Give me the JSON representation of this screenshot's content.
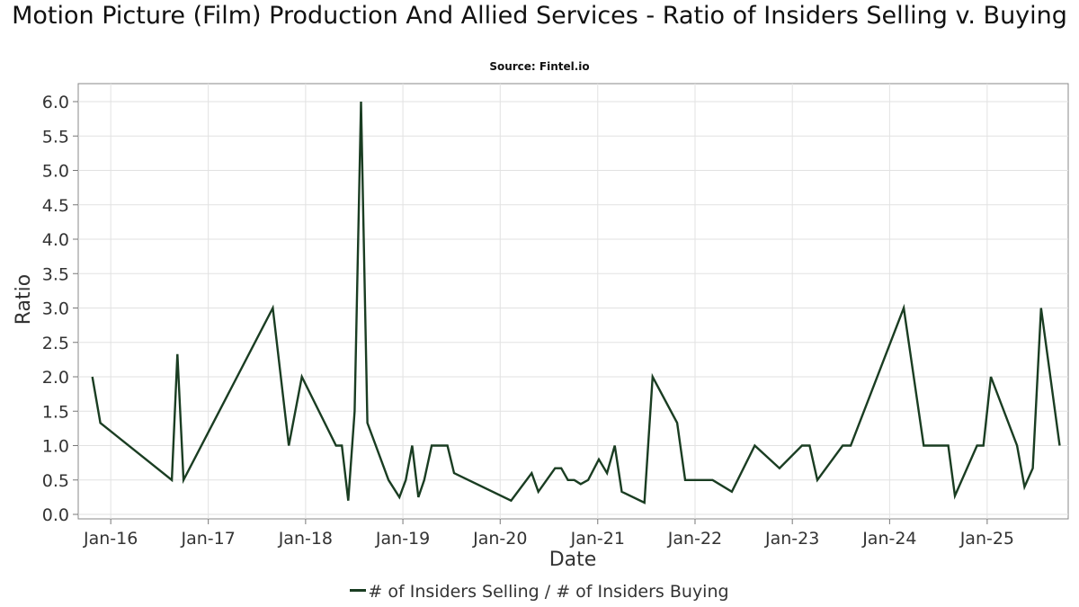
{
  "chart_data": {
    "type": "line",
    "title": "Motion Picture (Film) Production And Allied Services - Ratio of Insiders Selling v. Buying",
    "subtitle": "Source: Fintel.io",
    "xlabel": "Date",
    "ylabel": "Ratio",
    "x_ticks": [
      "Jan-16",
      "Jan-17",
      "Jan-18",
      "Jan-19",
      "Jan-20",
      "Jan-21",
      "Jan-22",
      "Jan-23",
      "Jan-24",
      "Jan-25"
    ],
    "y_ticks": [
      "0.0",
      "0.5",
      "1.0",
      "1.5",
      "2.0",
      "2.5",
      "3.0",
      "3.5",
      "4.0",
      "4.5",
      "5.0",
      "5.5",
      "6.0"
    ],
    "ylim": [
      0,
      6.3
    ],
    "xlim": [
      "2015-09-01",
      "2025-11-01"
    ],
    "grid": true,
    "legend_position": "bottom",
    "series": [
      {
        "name": "# of Insiders Selling / # of Insiders Buying",
        "color": "#1a3d22",
        "points": [
          [
            "2015-10-24",
            2.0
          ],
          [
            "2015-11-23",
            1.33
          ],
          [
            "2016-08-17",
            0.5
          ],
          [
            "2016-09-07",
            2.33
          ],
          [
            "2016-09-30",
            0.5
          ],
          [
            "2017-08-31",
            3.0
          ],
          [
            "2017-10-30",
            1.0
          ],
          [
            "2017-12-18",
            2.0
          ],
          [
            "2018-04-25",
            1.0
          ],
          [
            "2018-05-17",
            1.0
          ],
          [
            "2018-06-10",
            0.2
          ],
          [
            "2018-07-04",
            1.5
          ],
          [
            "2018-07-28",
            6.0
          ],
          [
            "2018-08-21",
            1.33
          ],
          [
            "2018-11-08",
            0.5
          ],
          [
            "2018-12-19",
            0.25
          ],
          [
            "2019-01-12",
            0.5
          ],
          [
            "2019-02-05",
            1.0
          ],
          [
            "2019-02-28",
            0.25
          ],
          [
            "2019-03-22",
            0.5
          ],
          [
            "2019-04-19",
            1.0
          ],
          [
            "2019-06-17",
            1.0
          ],
          [
            "2019-07-12",
            0.6
          ],
          [
            "2020-02-11",
            0.2
          ],
          [
            "2020-04-28",
            0.6
          ],
          [
            "2020-05-23",
            0.33
          ],
          [
            "2020-07-25",
            0.67
          ],
          [
            "2020-08-17",
            0.67
          ],
          [
            "2020-09-11",
            0.5
          ],
          [
            "2020-10-05",
            0.5
          ],
          [
            "2020-10-29",
            0.44
          ],
          [
            "2020-11-26",
            0.5
          ],
          [
            "2021-01-05",
            0.8
          ],
          [
            "2021-02-05",
            0.6
          ],
          [
            "2021-03-06",
            1.0
          ],
          [
            "2021-04-01",
            0.33
          ],
          [
            "2021-06-25",
            0.17
          ],
          [
            "2021-07-26",
            2.0
          ],
          [
            "2021-10-26",
            1.33
          ],
          [
            "2021-11-25",
            0.5
          ],
          [
            "2022-03-08",
            0.5
          ],
          [
            "2022-05-19",
            0.33
          ],
          [
            "2022-08-13",
            1.0
          ],
          [
            "2022-11-14",
            0.67
          ],
          [
            "2023-02-06",
            1.0
          ],
          [
            "2023-03-07",
            1.0
          ],
          [
            "2023-04-05",
            0.5
          ],
          [
            "2023-07-09",
            1.0
          ],
          [
            "2023-08-08",
            1.0
          ],
          [
            "2024-02-23",
            3.0
          ],
          [
            "2024-05-08",
            1.0
          ],
          [
            "2024-08-08",
            1.0
          ],
          [
            "2024-09-02",
            0.27
          ],
          [
            "2024-11-24",
            1.0
          ],
          [
            "2024-12-18",
            1.0
          ],
          [
            "2025-01-15",
            2.0
          ],
          [
            "2025-04-23",
            1.0
          ],
          [
            "2025-05-21",
            0.4
          ],
          [
            "2025-06-21",
            0.67
          ],
          [
            "2025-07-22",
            3.0
          ],
          [
            "2025-09-30",
            1.0
          ]
        ]
      }
    ]
  }
}
